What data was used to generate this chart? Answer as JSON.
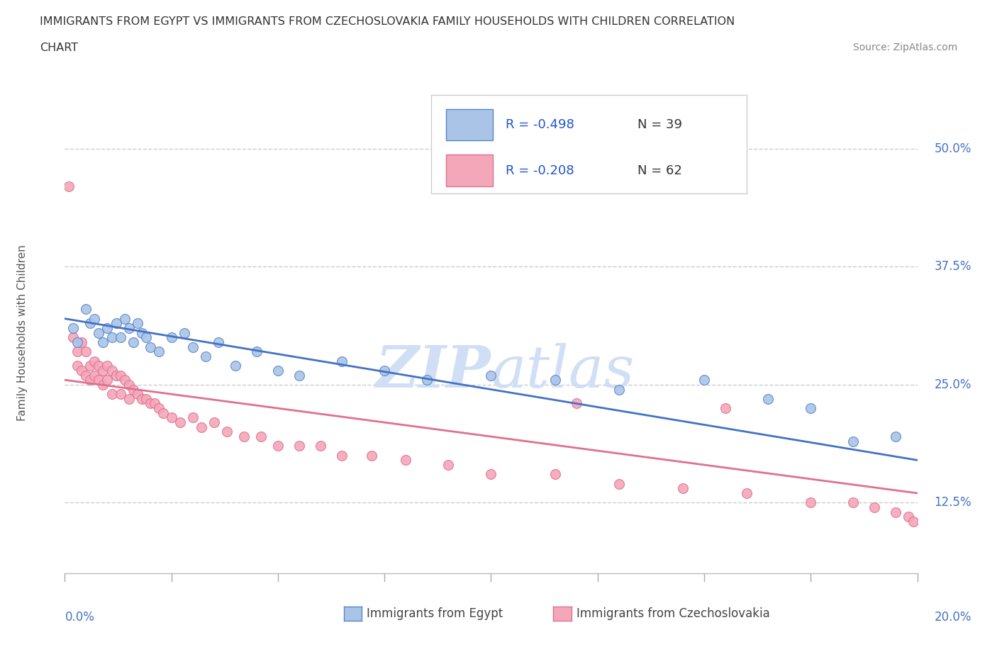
{
  "title_line1": "IMMIGRANTS FROM EGYPT VS IMMIGRANTS FROM CZECHOSLOVAKIA FAMILY HOUSEHOLDS WITH CHILDREN CORRELATION",
  "title_line2": "CHART",
  "source": "Source: ZipAtlas.com",
  "ylabel": "Family Households with Children",
  "yticks": [
    "12.5%",
    "25.0%",
    "37.5%",
    "50.0%"
  ],
  "ytick_vals": [
    0.125,
    0.25,
    0.375,
    0.5
  ],
  "xmin": 0.0,
  "xmax": 0.2,
  "ymin": 0.05,
  "ymax": 0.56,
  "legend_r1": "R = -0.498",
  "legend_n1": "N = 39",
  "legend_r2": "R = -0.208",
  "legend_n2": "N = 62",
  "color_egypt": "#aac4e8",
  "color_czecho": "#f4a7b9",
  "color_egypt_edge": "#5585c8",
  "color_czecho_edge": "#e07090",
  "color_egypt_line": "#4472c4",
  "color_czecho_line": "#e07090",
  "color_r_text": "#2255cc",
  "color_axis_label": "#4472c4",
  "watermark_color": "#d0dff5",
  "egypt_x": [
    0.002,
    0.003,
    0.005,
    0.006,
    0.007,
    0.008,
    0.009,
    0.01,
    0.011,
    0.012,
    0.013,
    0.014,
    0.015,
    0.016,
    0.017,
    0.018,
    0.019,
    0.02,
    0.022,
    0.025,
    0.028,
    0.03,
    0.033,
    0.036,
    0.04,
    0.045,
    0.05,
    0.055,
    0.065,
    0.075,
    0.085,
    0.1,
    0.115,
    0.13,
    0.15,
    0.165,
    0.175,
    0.185,
    0.195
  ],
  "egypt_y": [
    0.31,
    0.295,
    0.33,
    0.315,
    0.32,
    0.305,
    0.295,
    0.31,
    0.3,
    0.315,
    0.3,
    0.32,
    0.31,
    0.295,
    0.315,
    0.305,
    0.3,
    0.29,
    0.285,
    0.3,
    0.305,
    0.29,
    0.28,
    0.295,
    0.27,
    0.285,
    0.265,
    0.26,
    0.275,
    0.265,
    0.255,
    0.26,
    0.255,
    0.245,
    0.255,
    0.235,
    0.225,
    0.19,
    0.195
  ],
  "czecho_x": [
    0.001,
    0.002,
    0.003,
    0.003,
    0.004,
    0.004,
    0.005,
    0.005,
    0.006,
    0.006,
    0.007,
    0.007,
    0.008,
    0.008,
    0.009,
    0.009,
    0.01,
    0.01,
    0.011,
    0.011,
    0.012,
    0.013,
    0.013,
    0.014,
    0.015,
    0.015,
    0.016,
    0.017,
    0.018,
    0.019,
    0.02,
    0.021,
    0.022,
    0.023,
    0.025,
    0.027,
    0.03,
    0.032,
    0.035,
    0.038,
    0.042,
    0.046,
    0.05,
    0.055,
    0.06,
    0.065,
    0.072,
    0.08,
    0.09,
    0.1,
    0.115,
    0.13,
    0.145,
    0.16,
    0.175,
    0.185,
    0.19,
    0.195,
    0.198,
    0.199,
    0.12,
    0.155
  ],
  "czecho_y": [
    0.46,
    0.3,
    0.285,
    0.27,
    0.295,
    0.265,
    0.285,
    0.26,
    0.27,
    0.255,
    0.275,
    0.26,
    0.27,
    0.255,
    0.265,
    0.25,
    0.27,
    0.255,
    0.265,
    0.24,
    0.26,
    0.26,
    0.24,
    0.255,
    0.25,
    0.235,
    0.245,
    0.24,
    0.235,
    0.235,
    0.23,
    0.23,
    0.225,
    0.22,
    0.215,
    0.21,
    0.215,
    0.205,
    0.21,
    0.2,
    0.195,
    0.195,
    0.185,
    0.185,
    0.185,
    0.175,
    0.175,
    0.17,
    0.165,
    0.155,
    0.155,
    0.145,
    0.14,
    0.135,
    0.125,
    0.125,
    0.12,
    0.115,
    0.11,
    0.105,
    0.23,
    0.225
  ],
  "egypt_line_x0": 0.0,
  "egypt_line_x1": 0.2,
  "egypt_line_y0": 0.32,
  "egypt_line_y1": 0.17,
  "czecho_line_x0": 0.0,
  "czecho_line_x1": 0.2,
  "czecho_line_y0": 0.255,
  "czecho_line_y1": 0.135
}
